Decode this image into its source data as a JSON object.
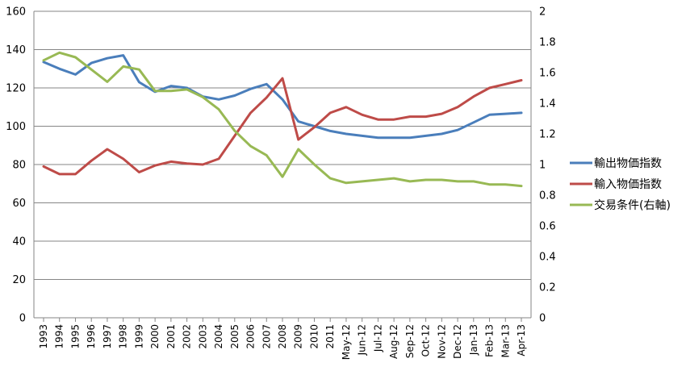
{
  "chart_data": {
    "type": "line",
    "title": "",
    "xlabel": "",
    "ylabel": "",
    "y2label": "",
    "grid": true,
    "legend_position": "right",
    "ylim": [
      0,
      160
    ],
    "y2lim": [
      0,
      2
    ],
    "y_ticks": [
      0,
      20,
      40,
      60,
      80,
      100,
      120,
      140,
      160
    ],
    "y2_ticks": [
      0,
      0.2,
      0.4,
      0.6,
      0.8,
      1,
      1.2,
      1.4,
      1.6,
      1.8,
      2
    ],
    "x": [
      "1993",
      "1994",
      "1995",
      "1996",
      "1997",
      "1998",
      "1999",
      "2000",
      "2001",
      "2002",
      "2003",
      "2004",
      "2005",
      "2006",
      "2007",
      "2008",
      "2009",
      "2010",
      "2011",
      "May-12",
      "Jun-12",
      "Jul-12",
      "Aug-12",
      "Sep-12",
      "Oct-12",
      "Nov-12",
      "Dec-12",
      "Jan-13",
      "Feb-13",
      "Mar-13",
      "Apr-13"
    ],
    "series": [
      {
        "name": "輸出物価指数",
        "axis": "left",
        "color": "#4A7EBB",
        "values": [
          133.5,
          130.0,
          127.0,
          133.0,
          135.5,
          137.0,
          123.0,
          118.0,
          121.0,
          120.0,
          115.5,
          114.0,
          116.0,
          119.5,
          122.0,
          114.0,
          102.5,
          100.0,
          97.5,
          96.0,
          95.0,
          94.0,
          94.0,
          94.0,
          95.0,
          96.0,
          98.0,
          102.0,
          106.0,
          106.5,
          107.0
        ]
      },
      {
        "name": "輸入物価指数",
        "axis": "left",
        "color": "#BE4B48",
        "values": [
          79.0,
          75.0,
          75.0,
          82.0,
          88.0,
          83.0,
          76.0,
          79.5,
          81.5,
          80.5,
          80.0,
          83.0,
          95.0,
          107.0,
          115.0,
          125.0,
          93.0,
          99.5,
          107.0,
          110.0,
          106.0,
          103.5,
          103.5,
          105.0,
          105.0,
          106.5,
          110.0,
          115.5,
          120.0,
          122.0,
          124.0
        ]
      },
      {
        "name": "交易条件(右軸)",
        "axis": "right",
        "color": "#98B954",
        "values": [
          1.68,
          1.73,
          1.7,
          1.62,
          1.54,
          1.64,
          1.62,
          1.48,
          1.48,
          1.49,
          1.44,
          1.36,
          1.22,
          1.12,
          1.06,
          0.92,
          1.1,
          1.0,
          0.91,
          0.88,
          0.89,
          0.9,
          0.91,
          0.89,
          0.9,
          0.9,
          0.89,
          0.89,
          0.87,
          0.87,
          0.86
        ]
      }
    ]
  }
}
